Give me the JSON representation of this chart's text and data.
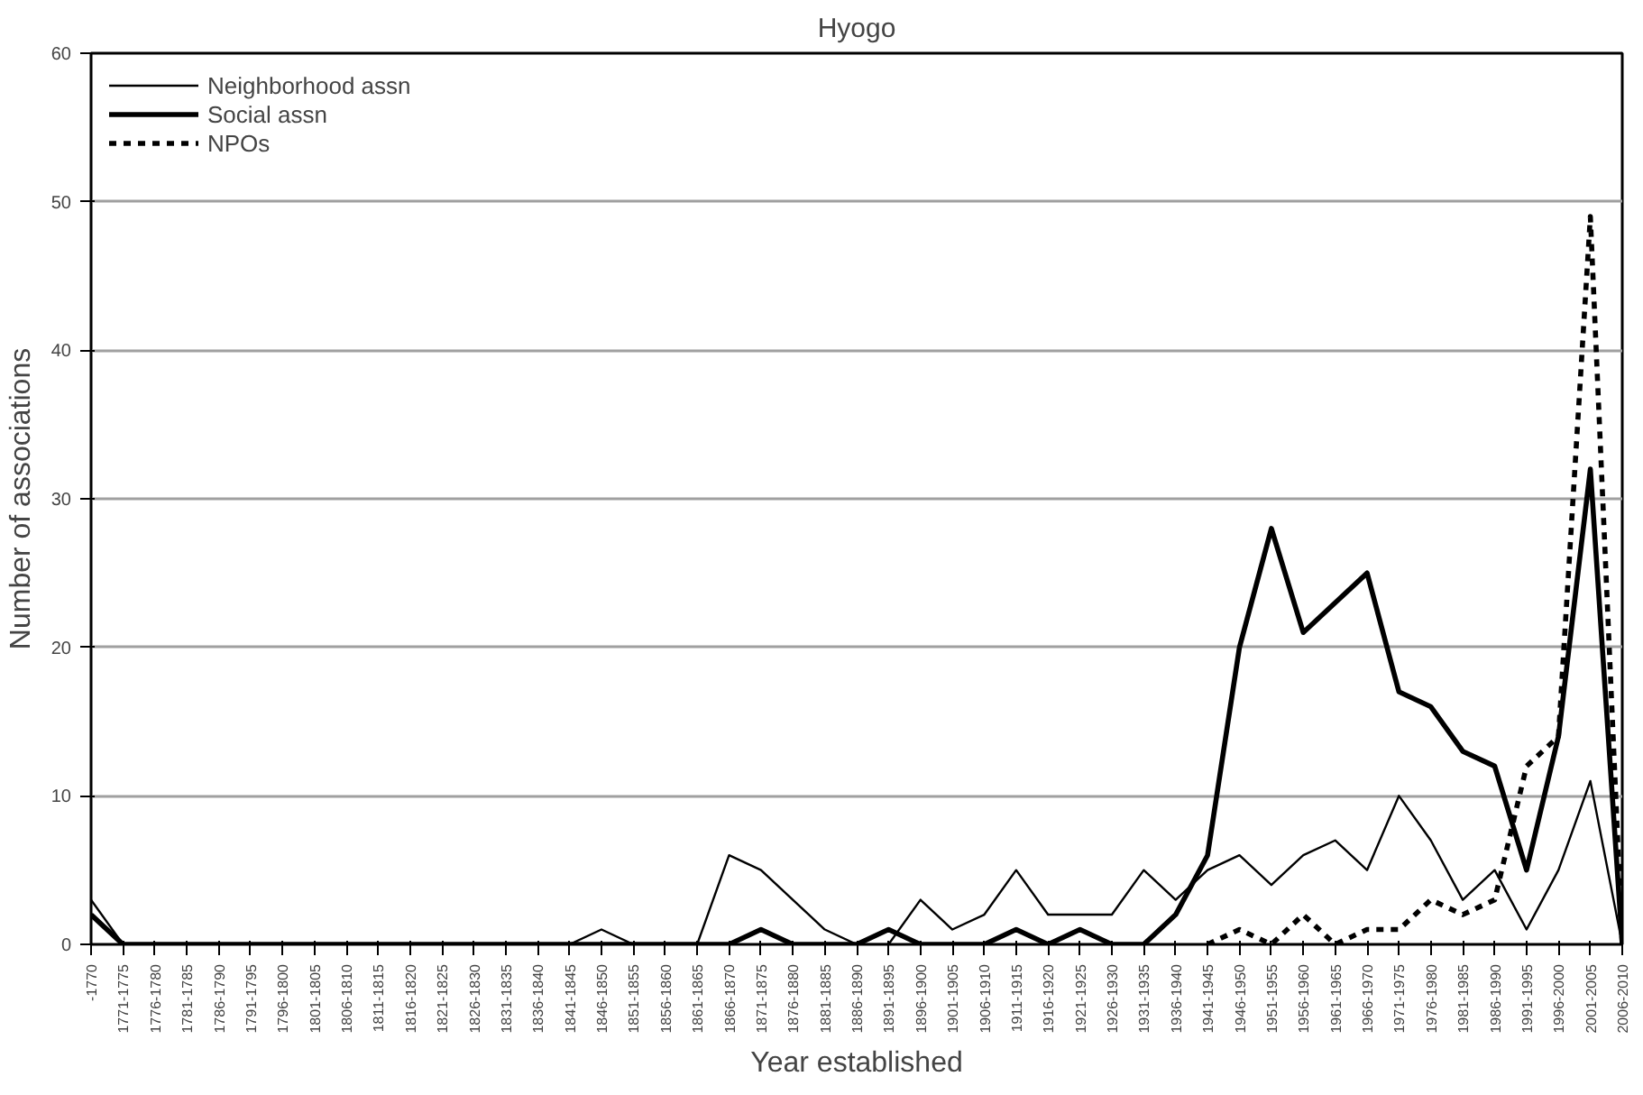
{
  "chart_data": {
    "type": "line",
    "title": "Hyogo",
    "xlabel": "Year established",
    "ylabel": "Number of associations",
    "categories": [
      "-1770",
      "1771-1775",
      "1776-1780",
      "1781-1785",
      "1786-1790",
      "1791-1795",
      "1796-1800",
      "1801-1805",
      "1806-1810",
      "1811-1815",
      "1816-1820",
      "1821-1825",
      "1826-1830",
      "1831-1835",
      "1836-1840",
      "1841-1845",
      "1846-1850",
      "1851-1855",
      "1856-1860",
      "1861-1865",
      "1866-1870",
      "1871-1875",
      "1876-1880",
      "1881-1885",
      "1886-1890",
      "1891-1895",
      "1896-1900",
      "1901-1905",
      "1906-1910",
      "1911-1915",
      "1916-1920",
      "1921-1925",
      "1926-1930",
      "1931-1935",
      "1936-1940",
      "1941-1945",
      "1946-1950",
      "1951-1955",
      "1956-1960",
      "1961-1965",
      "1966-1970",
      "1971-1975",
      "1976-1980",
      "1981-1985",
      "1986-1990",
      "1991-1995",
      "1996-2000",
      "2001-2005",
      "2006-2010"
    ],
    "series": [
      {
        "name": "Neighborhood assn",
        "color": "#000000",
        "line_style": "solid",
        "values": [
          3,
          0,
          0,
          0,
          0,
          0,
          0,
          0,
          0,
          0,
          0,
          0,
          0,
          0,
          0,
          0,
          1,
          0,
          0,
          0,
          6,
          5,
          3,
          1,
          0,
          0,
          3,
          1,
          2,
          5,
          2,
          2,
          2,
          5,
          3,
          5,
          6,
          4,
          6,
          7,
          5,
          10,
          7,
          3,
          5,
          1,
          5,
          11,
          0
        ]
      },
      {
        "name": "Social assn",
        "color": "#000000",
        "line_style": "solid",
        "values": [
          2,
          0,
          0,
          0,
          0,
          0,
          0,
          0,
          0,
          0,
          0,
          0,
          0,
          0,
          0,
          0,
          0,
          0,
          0,
          0,
          0,
          1,
          0,
          0,
          0,
          1,
          0,
          0,
          0,
          1,
          0,
          1,
          0,
          0,
          2,
          6,
          20,
          28,
          21,
          23,
          25,
          17,
          16,
          13,
          12,
          5,
          14,
          32,
          0
        ]
      },
      {
        "name": "NPOs",
        "color": "#000000",
        "line_style": "dotted",
        "values": [
          null,
          null,
          null,
          null,
          null,
          null,
          null,
          null,
          null,
          null,
          null,
          null,
          null,
          null,
          null,
          null,
          null,
          null,
          null,
          null,
          null,
          null,
          null,
          null,
          null,
          null,
          null,
          null,
          null,
          null,
          null,
          null,
          null,
          null,
          null,
          0,
          1,
          0,
          2,
          0,
          1,
          1,
          3,
          2,
          3,
          12,
          14,
          49,
          0
        ]
      }
    ],
    "ylim": [
      0,
      60
    ],
    "yticks": [
      0,
      10,
      20,
      30,
      40,
      50,
      60
    ],
    "grid": "y",
    "legend": "top left"
  }
}
